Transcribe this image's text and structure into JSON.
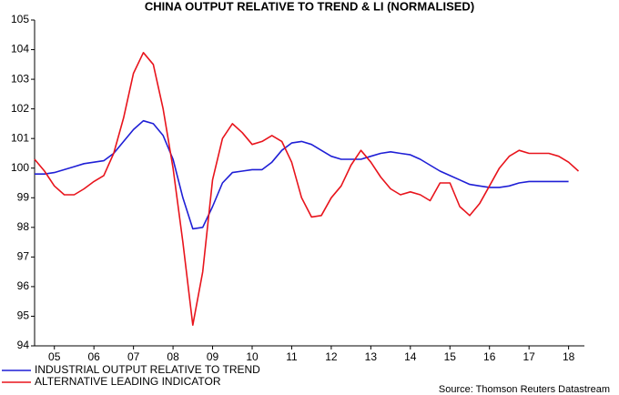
{
  "chart_data": {
    "type": "line",
    "title": "CHINA OUTPUT RELATIVE TO TREND & LI (NORMALISED)",
    "source": "Source: Thomson Reuters Datastream",
    "x": [
      2005,
      2005.25,
      2005.5,
      2005.75,
      2006,
      2006.25,
      2006.5,
      2006.75,
      2007,
      2007.25,
      2007.5,
      2007.75,
      2008,
      2008.25,
      2008.5,
      2008.75,
      2009,
      2009.25,
      2009.5,
      2009.75,
      2010,
      2010.25,
      2010.5,
      2010.75,
      2011,
      2011.25,
      2011.5,
      2011.75,
      2012,
      2012.25,
      2012.5,
      2012.75,
      2013,
      2013.25,
      2013.5,
      2013.75,
      2014,
      2014.25,
      2014.5,
      2014.75,
      2015,
      2015.25,
      2015.5,
      2015.75,
      2016,
      2016.25,
      2016.5,
      2016.75,
      2017,
      2017.25,
      2017.5,
      2017.75,
      2018,
      2018.25,
      2018.5,
      2018.75
    ],
    "series": [
      {
        "name": "INDUSTRIAL OUTPUT RELATIVE TO TREND",
        "color": "#1f1fd6",
        "values": [
          99.8,
          99.8,
          99.85,
          99.95,
          100.05,
          100.15,
          100.2,
          100.25,
          100.5,
          100.9,
          101.3,
          101.6,
          101.5,
          101.1,
          100.3,
          99.0,
          97.95,
          98.0,
          98.7,
          99.5,
          99.85,
          99.9,
          99.95,
          99.95,
          100.2,
          100.6,
          100.85,
          100.9,
          100.8,
          100.6,
          100.4,
          100.3,
          100.3,
          100.3,
          100.4,
          100.5,
          100.55,
          100.5,
          100.45,
          100.3,
          100.1,
          99.9,
          99.75,
          99.6,
          99.45,
          99.4,
          99.35,
          99.35,
          99.4,
          99.5,
          99.55,
          99.55,
          99.55,
          99.55,
          99.55,
          null
        ]
      },
      {
        "name": "ALTERNATIVE LEADING INDICATOR",
        "color": "#e8141c",
        "values": [
          100.3,
          99.9,
          99.4,
          99.1,
          99.1,
          99.3,
          99.55,
          99.75,
          100.5,
          101.7,
          103.2,
          103.9,
          103.5,
          102.0,
          100.0,
          97.5,
          94.7,
          96.5,
          99.6,
          101.0,
          101.5,
          101.2,
          100.8,
          100.9,
          101.1,
          100.9,
          100.2,
          99.0,
          98.35,
          98.4,
          99.0,
          99.4,
          100.1,
          100.6,
          100.2,
          99.7,
          99.3,
          99.1,
          99.2,
          99.1,
          98.9,
          99.5,
          99.5,
          98.7,
          98.4,
          98.8,
          99.4,
          100.0,
          100.4,
          100.6,
          100.5,
          100.5,
          100.5,
          100.4,
          100.2,
          99.9
        ]
      }
    ],
    "xlim": [
      2005,
      2018.9
    ],
    "xticks": [
      {
        "value": 2005.5,
        "label": "05"
      },
      {
        "value": 2006.5,
        "label": "06"
      },
      {
        "value": 2007.5,
        "label": "07"
      },
      {
        "value": 2008.5,
        "label": "08"
      },
      {
        "value": 2009.5,
        "label": "09"
      },
      {
        "value": 2010.5,
        "label": "10"
      },
      {
        "value": 2011.5,
        "label": "11"
      },
      {
        "value": 2012.5,
        "label": "12"
      },
      {
        "value": 2013.5,
        "label": "13"
      },
      {
        "value": 2014.5,
        "label": "14"
      },
      {
        "value": 2015.5,
        "label": "15"
      },
      {
        "value": 2016.5,
        "label": "16"
      },
      {
        "value": 2017.5,
        "label": "17"
      },
      {
        "value": 2018.5,
        "label": "18"
      }
    ],
    "ylim": [
      94,
      105
    ],
    "yticks": [
      94,
      95,
      96,
      97,
      98,
      99,
      100,
      101,
      102,
      103,
      104,
      105
    ],
    "legend": "bottom-left"
  }
}
